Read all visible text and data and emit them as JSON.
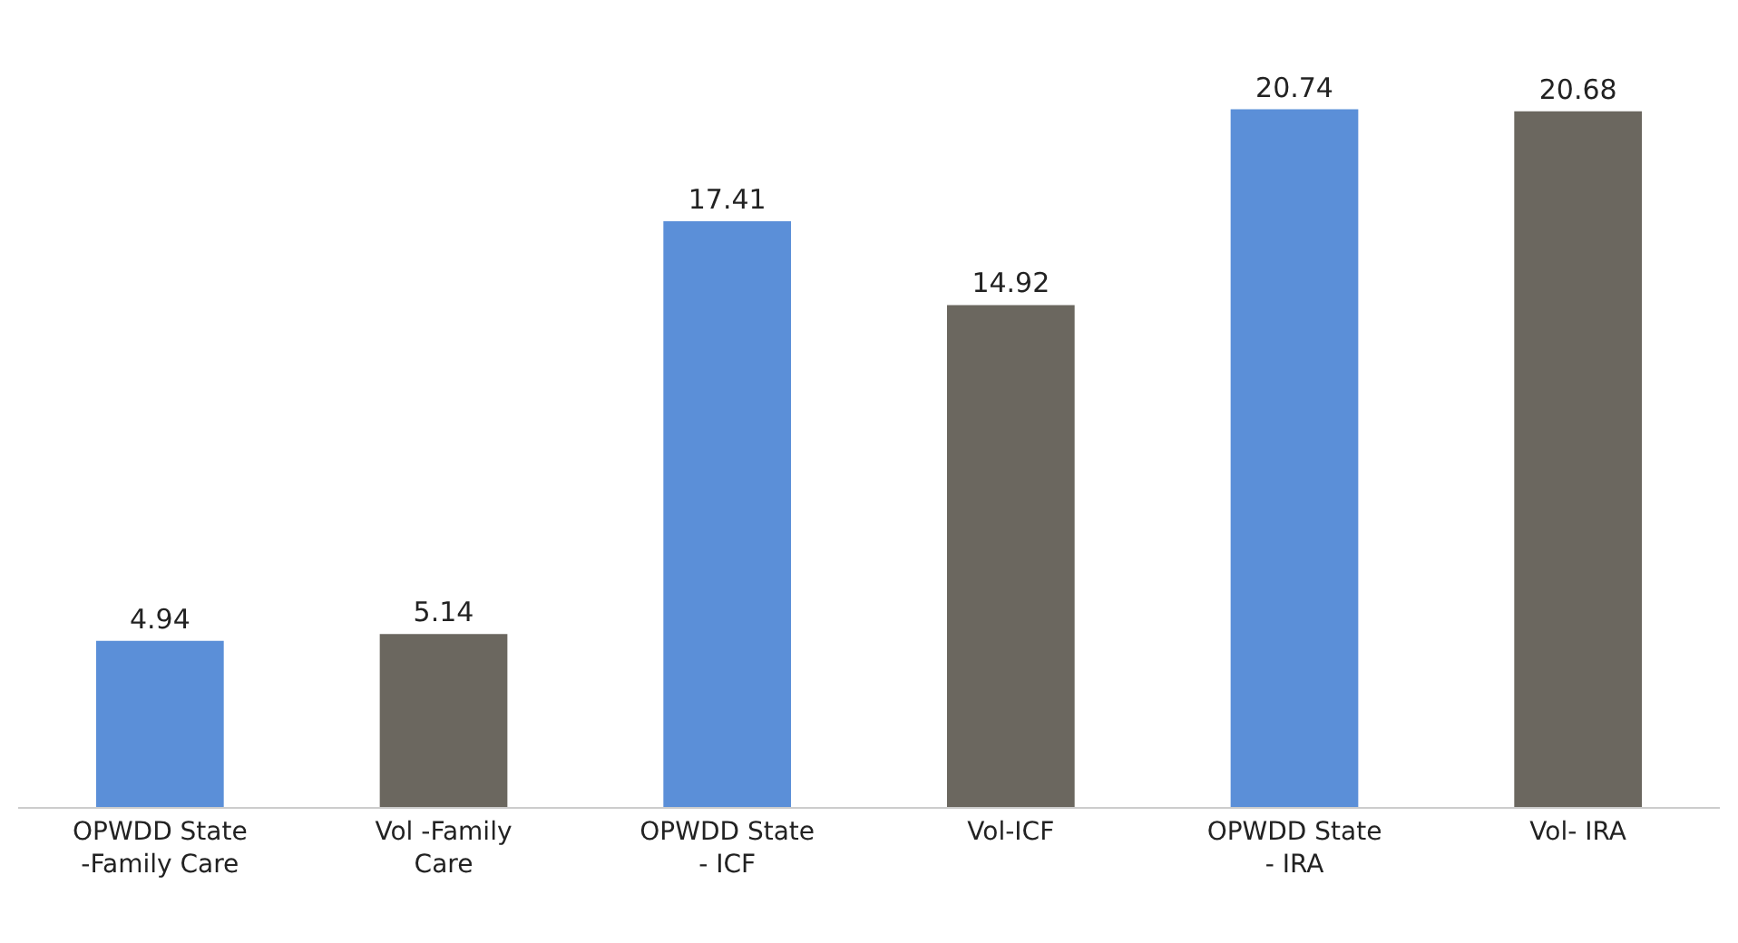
{
  "chart_data": {
    "type": "bar",
    "categories": [
      "OPWDD State -Family Care",
      "Vol -Family Care",
      "OPWDD State - ICF",
      "Vol-ICF",
      "OPWDD State - IRA",
      "Vol- IRA"
    ],
    "values": [
      4.94,
      5.14,
      17.41,
      14.92,
      20.74,
      20.68
    ],
    "colors": [
      "#5b8fd8",
      "#6b675f",
      "#5b8fd8",
      "#6b675f",
      "#5b8fd8",
      "#6b675f"
    ],
    "data_labels": true
  }
}
